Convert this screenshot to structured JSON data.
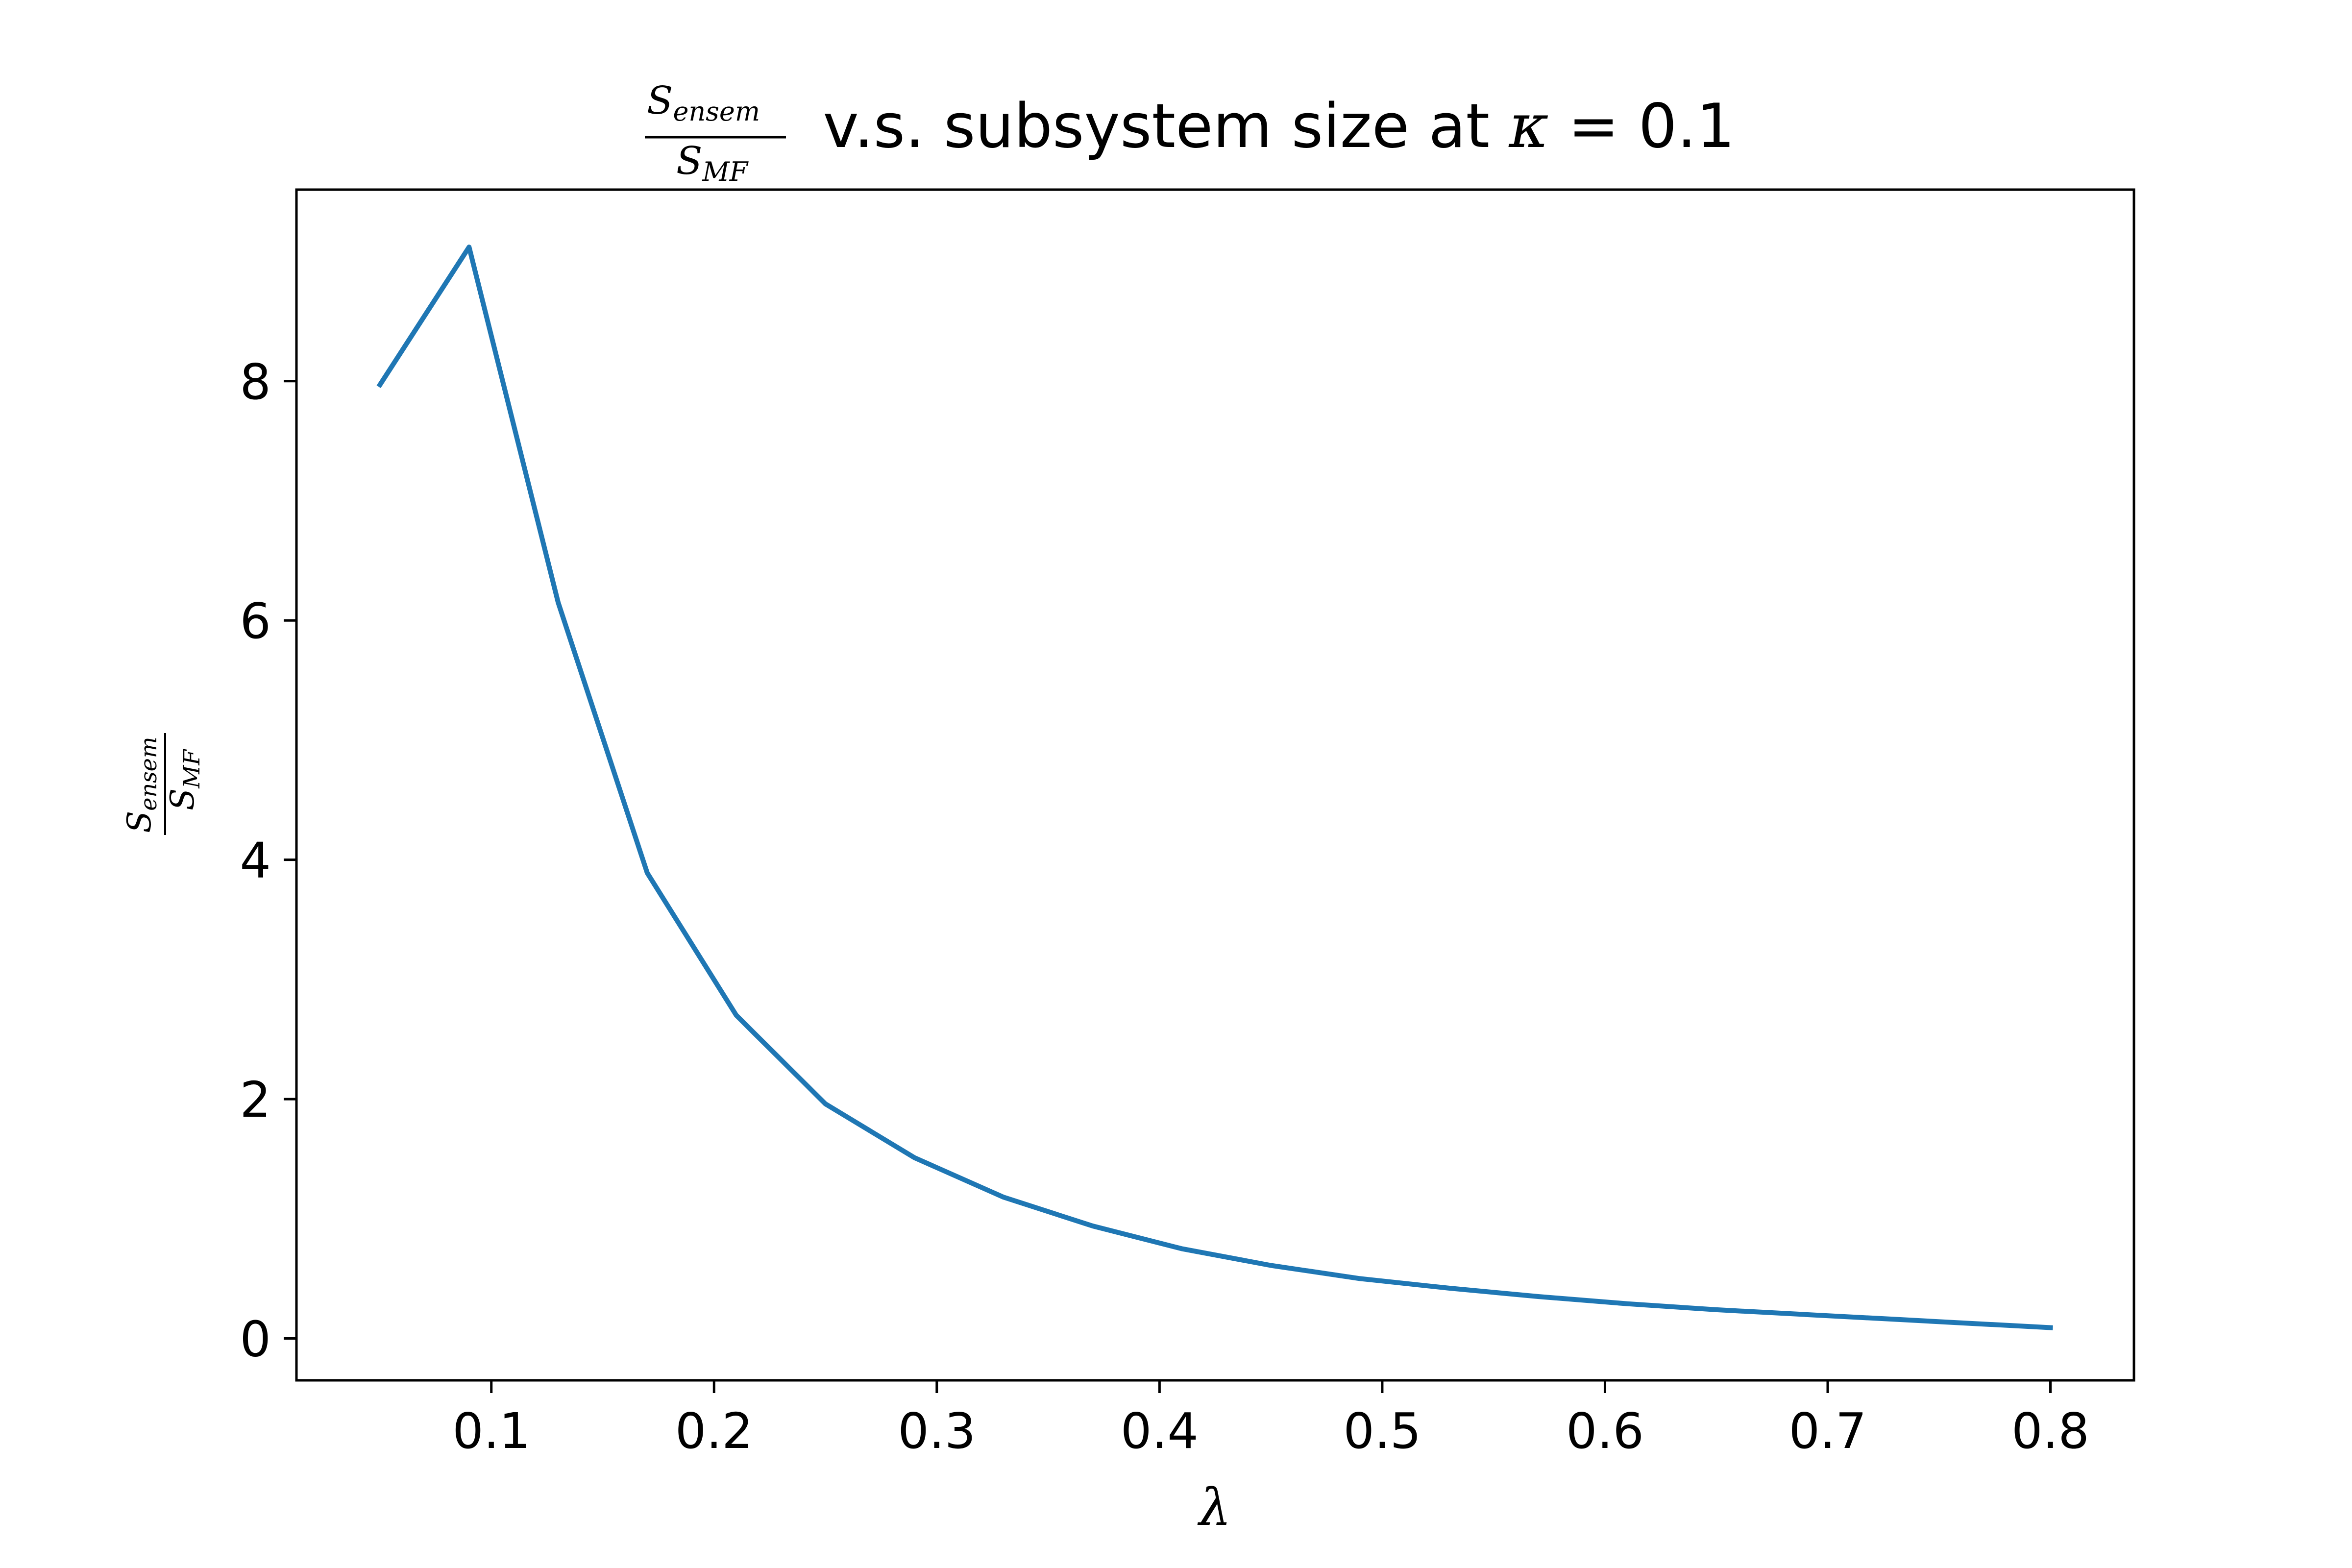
{
  "chart_data": {
    "type": "line",
    "title": {
      "frac_num": "S",
      "frac_num_sub": "ensem",
      "frac_den": "S",
      "frac_den_sub": "MF",
      "text": " v.s. subsystem size at ",
      "kappa": "κ",
      "equals": " = 0.1"
    },
    "xlabel": "λ",
    "ylabel": {
      "num": "S",
      "num_sub": "ensem",
      "den": "S",
      "den_sub": "MF"
    },
    "xlim": [
      0.0125,
      0.8375
    ],
    "ylim": [
      -0.35,
      9.6
    ],
    "xticks": [
      0.1,
      0.2,
      0.3,
      0.4,
      0.5,
      0.6,
      0.7,
      0.8
    ],
    "xtick_labels": [
      "0.1",
      "0.2",
      "0.3",
      "0.4",
      "0.5",
      "0.6",
      "0.7",
      "0.8"
    ],
    "yticks": [
      0,
      2,
      4,
      6,
      8
    ],
    "ytick_labels": [
      "0",
      "2",
      "4",
      "6",
      "8"
    ],
    "grid": false,
    "series": [
      {
        "color": "#1f77b4",
        "x": [
          0.05,
          0.09,
          0.13,
          0.17,
          0.21,
          0.25,
          0.29,
          0.33,
          0.37,
          0.41,
          0.45,
          0.49,
          0.53,
          0.57,
          0.61,
          0.65,
          0.69,
          0.73,
          0.77,
          0.8
        ],
        "y": [
          7.97,
          9.12,
          6.15,
          3.89,
          2.7,
          1.96,
          1.51,
          1.18,
          0.94,
          0.75,
          0.61,
          0.5,
          0.42,
          0.35,
          0.29,
          0.24,
          0.2,
          0.16,
          0.12,
          0.09
        ]
      }
    ]
  }
}
